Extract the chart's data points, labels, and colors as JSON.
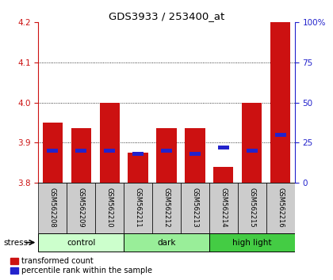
{
  "title": "GDS3933 / 253400_at",
  "samples": [
    "GSM562208",
    "GSM562209",
    "GSM562210",
    "GSM562211",
    "GSM562212",
    "GSM562213",
    "GSM562214",
    "GSM562215",
    "GSM562216"
  ],
  "red_values": [
    3.95,
    3.935,
    4.0,
    3.875,
    3.935,
    3.935,
    3.84,
    4.0,
    4.2
  ],
  "blue_percentiles": [
    20,
    20,
    20,
    18,
    20,
    18,
    22,
    20,
    30
  ],
  "ylim_left": [
    3.8,
    4.2
  ],
  "ylim_right": [
    0,
    100
  ],
  "yticks_left": [
    3.8,
    3.9,
    4.0,
    4.1,
    4.2
  ],
  "yticks_right": [
    0,
    25,
    50,
    75,
    100
  ],
  "groups": [
    {
      "label": "control",
      "start": 0,
      "end": 3,
      "color": "#ccffcc"
    },
    {
      "label": "dark",
      "start": 3,
      "end": 6,
      "color": "#99ee99"
    },
    {
      "label": "high light",
      "start": 6,
      "end": 9,
      "color": "#44cc44"
    }
  ],
  "bar_color_red": "#cc1111",
  "bar_color_blue": "#2222cc",
  "bar_width": 0.7,
  "base_value": 3.8,
  "left_axis_color": "#cc1111",
  "right_axis_color": "#2222cc"
}
